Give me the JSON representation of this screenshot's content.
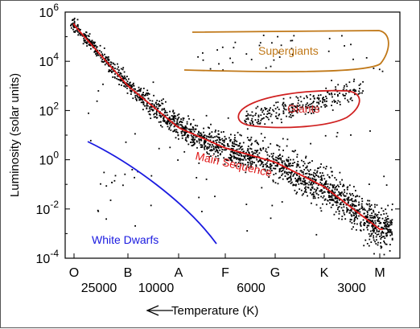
{
  "chart_data": {
    "type": "scatter",
    "title": "",
    "xlabel": "Temperature (K)",
    "xlabel_arrow": "left",
    "ylabel": "Luminosity (solar units)",
    "y_scale": "log",
    "ylim": [
      0.0001,
      1000000
    ],
    "y_ticks": [
      {
        "base": "10",
        "exp": "-4",
        "value": 0.0001
      },
      {
        "base": "10",
        "exp": "-2",
        "value": 0.01
      },
      {
        "base": "10",
        "exp": "0",
        "value": 1
      },
      {
        "base": "10",
        "exp": "2",
        "value": 100
      },
      {
        "base": "10",
        "exp": "4",
        "value": 10000
      },
      {
        "base": "10",
        "exp": "6",
        "value": 1000000
      }
    ],
    "spectral_classes": [
      "O",
      "B",
      "A",
      "F",
      "G",
      "K",
      "M"
    ],
    "temperature_ticks": [
      "25000",
      "10000",
      "6000",
      "3000"
    ],
    "annotations": {
      "supergiants": {
        "label": "Supergiants",
        "color": "#c07818"
      },
      "giants": {
        "label": "Giants",
        "color": "#d02020"
      },
      "main_sequence": {
        "label": "Main Sequence",
        "color": "#e01818"
      },
      "white_dwarfs": {
        "label": "White Dwarfs",
        "color": "#1a1ae0"
      }
    },
    "main_sequence_curve": {
      "x": [
        "O",
        "B",
        "A",
        "F",
        "G",
        "K",
        "M"
      ],
      "luminosity": [
        300000,
        1000,
        20,
        3,
        0.8,
        0.08,
        0.0015
      ]
    },
    "white_dwarf_curve": {
      "x": [
        "O",
        "B",
        "A",
        "F"
      ],
      "luminosity": [
        0.6,
        0.08,
        0.006,
        5e-05
      ]
    },
    "grid": false,
    "legend": "none",
    "point_color": "#000000"
  }
}
